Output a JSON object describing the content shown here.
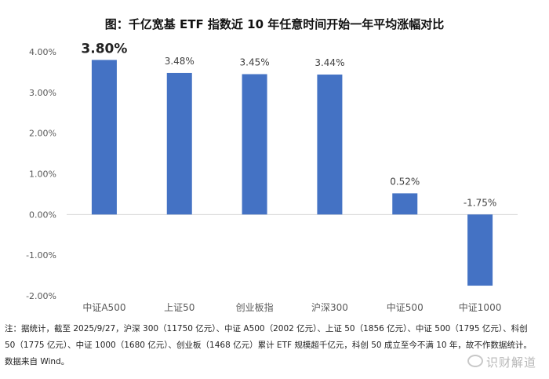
{
  "chart_data": {
    "type": "bar",
    "title": "图：千亿宽基 ETF 指数近 10 年任意时间开始一年平均涨幅对比",
    "categories": [
      "中证A500",
      "上证50",
      "创业板指",
      "沪深300",
      "中证500",
      "中证1000"
    ],
    "values": [
      3.8,
      3.48,
      3.45,
      3.44,
      0.52,
      -1.75
    ],
    "data_labels": [
      "3.80%",
      "3.48%",
      "3.45%",
      "3.44%",
      "0.52%",
      "-1.75%"
    ],
    "highlight_index": 0,
    "ylim": [
      -2.0,
      4.0
    ],
    "yticks": [
      4.0,
      3.0,
      2.0,
      1.0,
      0.0,
      -1.0,
      -2.0
    ],
    "ytick_labels": [
      "4.00%",
      "3.00%",
      "2.00%",
      "1.00%",
      "0.00%",
      "-1.00%",
      "-2.00%"
    ],
    "bar_color": "#4472C4",
    "grid": false,
    "legend": "none"
  },
  "note": {
    "text": "注：据统计，截至 2025/9/27，沪深 300（11750 亿元）、中证 A500（2002 亿元）、上证 50（1856 亿元）、中证 500（1795 亿元）、科创 50（1775 亿元）、中证 1000（1680 亿元）、创业板（1468 亿元）累计 ETF 规模超千亿元，科创 50 成立至今不满 10 年，故不作数据统计。数据来自 Wind。"
  },
  "watermark": {
    "text": "识财解道",
    "icon": "weibo-icon"
  }
}
